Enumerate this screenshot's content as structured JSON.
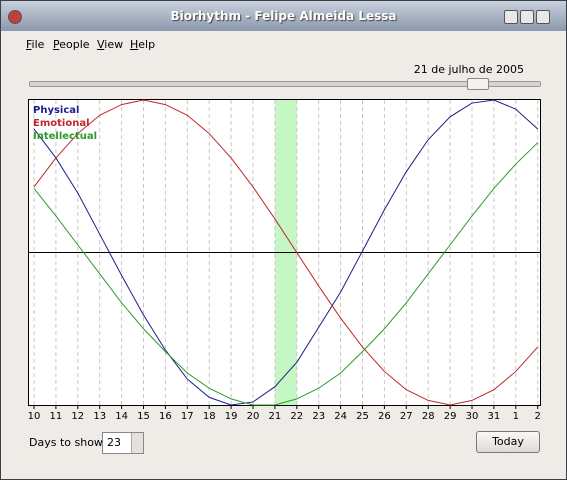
{
  "window": {
    "title": "Biorhythm - Felipe Almeida Lessa"
  },
  "menu": [
    "File",
    "People",
    "View",
    "Help"
  ],
  "date_label": "21 de julho de 2005",
  "chart_data": {
    "type": "line",
    "categories": [
      "10",
      "11",
      "12",
      "13",
      "14",
      "15",
      "16",
      "17",
      "18",
      "19",
      "20",
      "21",
      "22",
      "23",
      "24",
      "25",
      "26",
      "27",
      "28",
      "29",
      "30",
      "31",
      "1",
      "2"
    ],
    "ylim": [
      -1,
      1
    ],
    "highlight_category": "21",
    "series": [
      {
        "name": "Physical",
        "color": "#1c1c8c",
        "values": [
          0.81,
          0.62,
          0.39,
          0.12,
          -0.15,
          -0.41,
          -0.64,
          -0.83,
          -0.95,
          -1.0,
          -0.98,
          -0.88,
          -0.72,
          -0.49,
          -0.26,
          0.01,
          0.28,
          0.53,
          0.74,
          0.89,
          0.98,
          1.0,
          0.94,
          0.81
        ]
      },
      {
        "name": "Emotional",
        "color": "#c02828",
        "values": [
          0.43,
          0.62,
          0.78,
          0.9,
          0.97,
          1.0,
          0.97,
          0.9,
          0.78,
          0.62,
          0.43,
          0.22,
          0.0,
          -0.22,
          -0.43,
          -0.62,
          -0.78,
          -0.9,
          -0.97,
          -1.0,
          -0.97,
          -0.9,
          -0.78,
          -0.62
        ]
      },
      {
        "name": "Intellectual",
        "color": "#2e9a2e",
        "values": [
          0.42,
          0.24,
          0.05,
          -0.14,
          -0.33,
          -0.5,
          -0.65,
          -0.79,
          -0.89,
          -0.96,
          -1.0,
          -1.0,
          -0.96,
          -0.89,
          -0.79,
          -0.65,
          -0.5,
          -0.33,
          -0.14,
          0.05,
          0.24,
          0.42,
          0.58,
          0.72
        ]
      }
    ]
  },
  "controls": {
    "days_label": "Days to show:",
    "days_value": 23,
    "today_button": "Today"
  }
}
